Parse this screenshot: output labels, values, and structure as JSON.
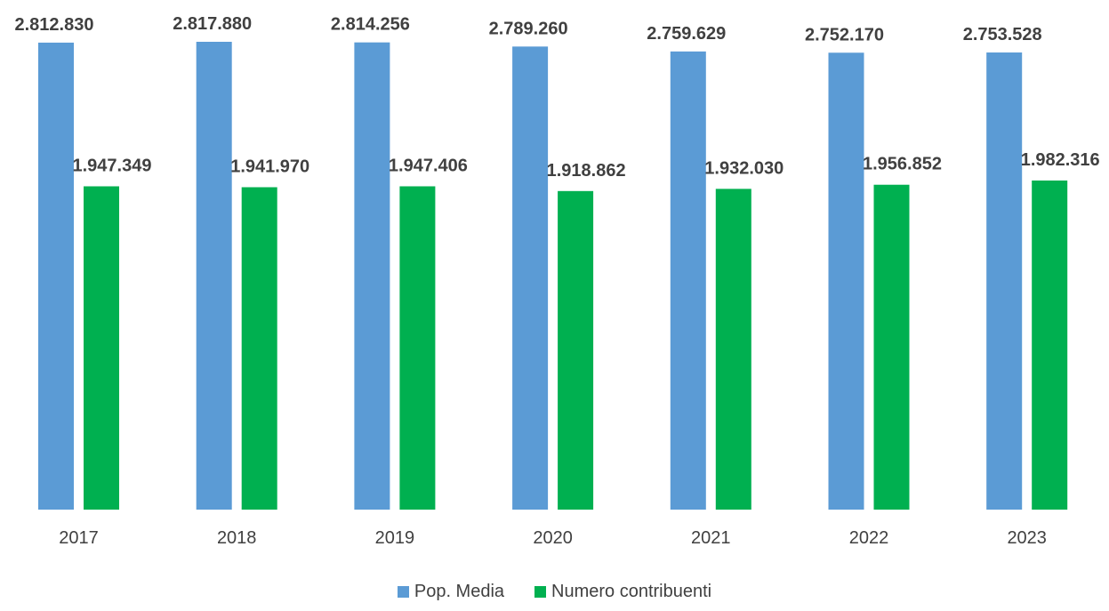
{
  "chart_data": {
    "type": "bar",
    "title": "",
    "xlabel": "",
    "ylabel": "",
    "ylim": [
      0,
      3000000
    ],
    "grid": false,
    "legend_position": "bottom",
    "categories": [
      "2017",
      "2018",
      "2019",
      "2020",
      "2021",
      "2022",
      "2023"
    ],
    "series": [
      {
        "name": "Pop. Media",
        "color": "#5B9BD5",
        "values": [
          2812830,
          2817880,
          2814256,
          2789260,
          2759629,
          2752170,
          2753528
        ],
        "labels": [
          "2.812.830",
          "2.817.880",
          "2.814.256",
          "2.789.260",
          "2.759.629",
          "2.752.170",
          "2.753.528"
        ]
      },
      {
        "name": "Numero contribuenti",
        "color": "#00B050",
        "values": [
          1947349,
          1941970,
          1947406,
          1918862,
          1932030,
          1956852,
          1982316
        ],
        "labels": [
          "1.947.349",
          "1.941.970",
          "1.947.406",
          "1.918.862",
          "1.932.030",
          "1.956.852",
          "1.982.316"
        ]
      }
    ]
  }
}
